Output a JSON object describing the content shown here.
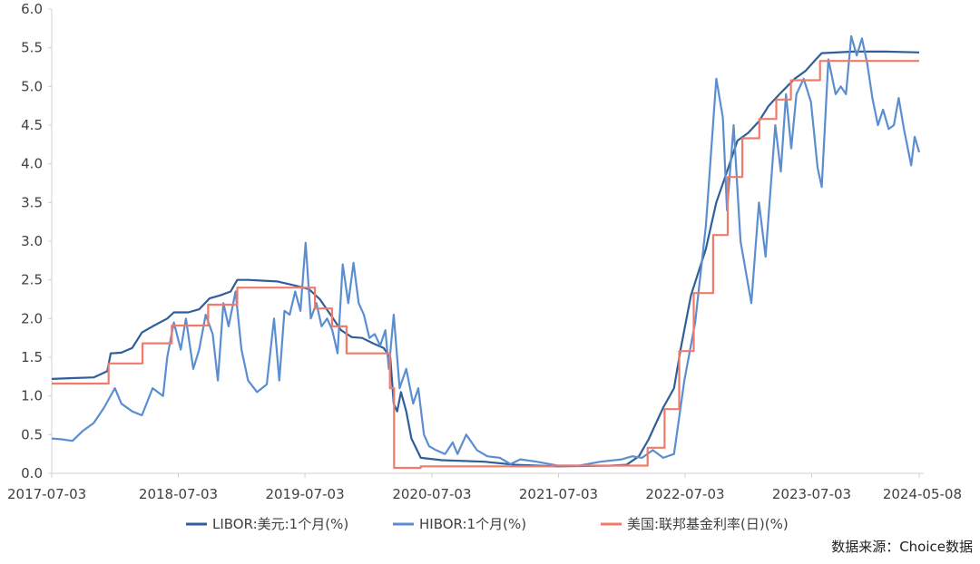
{
  "chart_data": {
    "type": "line",
    "title": "",
    "xlabel": "",
    "ylabel": "",
    "ylim": [
      0,
      6
    ],
    "xlim": [
      "2017-07-03",
      "2024-05-08"
    ],
    "y_ticks": [
      "0.0",
      "0.5",
      "1.0",
      "1.5",
      "2.0",
      "2.5",
      "3.0",
      "3.5",
      "4.0",
      "4.5",
      "5.0",
      "5.5",
      "6.0"
    ],
    "x_ticks": [
      {
        "date": "2017-07-03",
        "label": "2017-07-03"
      },
      {
        "date": "2018-07-03",
        "label": "2018-07-03"
      },
      {
        "date": "2019-07-03",
        "label": "2019-07-03"
      },
      {
        "date": "2020-07-03",
        "label": "2020-07-03"
      },
      {
        "date": "2021-07-03",
        "label": "2021-07-03"
      },
      {
        "date": "2022-07-03",
        "label": "2022-07-03"
      },
      {
        "date": "2023-07-03",
        "label": "2023-07-03"
      },
      {
        "date": "2024-05-08",
        "label": "2024-05-08"
      }
    ],
    "grid": false,
    "legend_position": "bottom",
    "series": [
      {
        "name": "LIBOR:美元:1个月(%)",
        "color": "#2f5f97",
        "points": [
          [
            "2017-07-03",
            1.22
          ],
          [
            "2017-09-01",
            1.23
          ],
          [
            "2017-11-01",
            1.24
          ],
          [
            "2017-12-10",
            1.32
          ],
          [
            "2017-12-20",
            1.55
          ],
          [
            "2018-01-20",
            1.56
          ],
          [
            "2018-02-20",
            1.62
          ],
          [
            "2018-03-20",
            1.82
          ],
          [
            "2018-04-20",
            1.9
          ],
          [
            "2018-06-01",
            2.0
          ],
          [
            "2018-06-20",
            2.08
          ],
          [
            "2018-08-01",
            2.08
          ],
          [
            "2018-09-01",
            2.12
          ],
          [
            "2018-10-01",
            2.26
          ],
          [
            "2018-11-01",
            2.3
          ],
          [
            "2018-12-01",
            2.35
          ],
          [
            "2018-12-20",
            2.5
          ],
          [
            "2019-01-20",
            2.5
          ],
          [
            "2019-03-01",
            2.49
          ],
          [
            "2019-04-15",
            2.48
          ],
          [
            "2019-06-01",
            2.43
          ],
          [
            "2019-07-15",
            2.38
          ],
          [
            "2019-08-15",
            2.25
          ],
          [
            "2019-09-15",
            2.05
          ],
          [
            "2019-10-15",
            1.85
          ],
          [
            "2019-11-15",
            1.76
          ],
          [
            "2019-12-15",
            1.75
          ],
          [
            "2020-01-15",
            1.68
          ],
          [
            "2020-02-15",
            1.62
          ],
          [
            "2020-03-05",
            1.5
          ],
          [
            "2020-03-15",
            0.9
          ],
          [
            "2020-03-25",
            0.8
          ],
          [
            "2020-04-05",
            1.05
          ],
          [
            "2020-04-20",
            0.8
          ],
          [
            "2020-05-05",
            0.45
          ],
          [
            "2020-06-01",
            0.2
          ],
          [
            "2020-08-01",
            0.17
          ],
          [
            "2020-12-01",
            0.15
          ],
          [
            "2021-03-01",
            0.11
          ],
          [
            "2021-07-01",
            0.09
          ],
          [
            "2021-12-01",
            0.1
          ],
          [
            "2022-01-15",
            0.11
          ],
          [
            "2022-02-20",
            0.22
          ],
          [
            "2022-03-20",
            0.44
          ],
          [
            "2022-05-01",
            0.85
          ],
          [
            "2022-06-01",
            1.1
          ],
          [
            "2022-06-20",
            1.6
          ],
          [
            "2022-07-20",
            2.3
          ],
          [
            "2022-09-01",
            2.9
          ],
          [
            "2022-10-01",
            3.5
          ],
          [
            "2022-11-01",
            3.9
          ],
          [
            "2022-12-01",
            4.3
          ],
          [
            "2023-01-01",
            4.4
          ],
          [
            "2023-02-01",
            4.55
          ],
          [
            "2023-03-01",
            4.75
          ],
          [
            "2023-04-01",
            4.9
          ],
          [
            "2023-05-15",
            5.1
          ],
          [
            "2023-06-15",
            5.2
          ],
          [
            "2023-07-15",
            5.35
          ],
          [
            "2023-08-01",
            5.43
          ],
          [
            "2023-11-01",
            5.45
          ],
          [
            "2024-02-01",
            5.45
          ],
          [
            "2024-05-08",
            5.44
          ]
        ]
      },
      {
        "name": "HIBOR:1个月(%)",
        "color": "#5b8ed0",
        "points": [
          [
            "2017-07-03",
            0.45
          ],
          [
            "2017-08-01",
            0.44
          ],
          [
            "2017-09-01",
            0.42
          ],
          [
            "2017-10-01",
            0.55
          ],
          [
            "2017-11-01",
            0.65
          ],
          [
            "2017-12-01",
            0.85
          ],
          [
            "2018-01-01",
            1.1
          ],
          [
            "2018-01-20",
            0.9
          ],
          [
            "2018-02-20",
            0.8
          ],
          [
            "2018-03-20",
            0.75
          ],
          [
            "2018-04-20",
            1.1
          ],
          [
            "2018-05-20",
            1.0
          ],
          [
            "2018-06-01",
            1.5
          ],
          [
            "2018-06-20",
            1.95
          ],
          [
            "2018-07-10",
            1.6
          ],
          [
            "2018-07-25",
            2.0
          ],
          [
            "2018-08-15",
            1.35
          ],
          [
            "2018-09-01",
            1.6
          ],
          [
            "2018-09-20",
            2.05
          ],
          [
            "2018-10-10",
            1.8
          ],
          [
            "2018-10-25",
            1.2
          ],
          [
            "2018-11-10",
            2.2
          ],
          [
            "2018-11-25",
            1.9
          ],
          [
            "2018-12-15",
            2.35
          ],
          [
            "2019-01-01",
            1.6
          ],
          [
            "2019-01-20",
            1.2
          ],
          [
            "2019-02-15",
            1.05
          ],
          [
            "2019-03-15",
            1.15
          ],
          [
            "2019-04-05",
            2.0
          ],
          [
            "2019-04-20",
            1.2
          ],
          [
            "2019-05-05",
            2.1
          ],
          [
            "2019-05-20",
            2.05
          ],
          [
            "2019-06-05",
            2.35
          ],
          [
            "2019-06-20",
            2.1
          ],
          [
            "2019-07-05",
            2.98
          ],
          [
            "2019-07-20",
            2.0
          ],
          [
            "2019-08-05",
            2.2
          ],
          [
            "2019-08-20",
            1.9
          ],
          [
            "2019-09-05",
            2.0
          ],
          [
            "2019-09-20",
            1.85
          ],
          [
            "2019-10-05",
            1.55
          ],
          [
            "2019-10-20",
            2.7
          ],
          [
            "2019-11-05",
            2.2
          ],
          [
            "2019-11-20",
            2.72
          ],
          [
            "2019-12-05",
            2.2
          ],
          [
            "2019-12-20",
            2.05
          ],
          [
            "2020-01-05",
            1.75
          ],
          [
            "2020-01-20",
            1.8
          ],
          [
            "2020-02-05",
            1.65
          ],
          [
            "2020-02-20",
            1.85
          ],
          [
            "2020-03-01",
            1.35
          ],
          [
            "2020-03-15",
            2.05
          ],
          [
            "2020-04-01",
            1.1
          ],
          [
            "2020-04-20",
            1.35
          ],
          [
            "2020-05-10",
            0.9
          ],
          [
            "2020-05-25",
            1.1
          ],
          [
            "2020-06-10",
            0.5
          ],
          [
            "2020-06-25",
            0.35
          ],
          [
            "2020-07-15",
            0.3
          ],
          [
            "2020-08-10",
            0.25
          ],
          [
            "2020-09-01",
            0.4
          ],
          [
            "2020-09-15",
            0.25
          ],
          [
            "2020-10-10",
            0.5
          ],
          [
            "2020-11-10",
            0.3
          ],
          [
            "2020-12-10",
            0.22
          ],
          [
            "2021-01-15",
            0.2
          ],
          [
            "2021-02-15",
            0.12
          ],
          [
            "2021-03-15",
            0.18
          ],
          [
            "2021-05-01",
            0.15
          ],
          [
            "2021-07-01",
            0.1
          ],
          [
            "2021-09-01",
            0.1
          ],
          [
            "2021-11-01",
            0.15
          ],
          [
            "2022-01-01",
            0.18
          ],
          [
            "2022-02-01",
            0.22
          ],
          [
            "2022-03-01",
            0.2
          ],
          [
            "2022-04-01",
            0.3
          ],
          [
            "2022-05-01",
            0.2
          ],
          [
            "2022-06-01",
            0.25
          ],
          [
            "2022-07-01",
            1.2
          ],
          [
            "2022-08-01",
            1.95
          ],
          [
            "2022-09-01",
            3.2
          ],
          [
            "2022-10-01",
            5.1
          ],
          [
            "2022-10-20",
            4.6
          ],
          [
            "2022-11-01",
            3.4
          ],
          [
            "2022-11-20",
            4.5
          ],
          [
            "2022-12-10",
            3.0
          ],
          [
            "2023-01-10",
            2.2
          ],
          [
            "2023-02-01",
            3.5
          ],
          [
            "2023-02-20",
            2.8
          ],
          [
            "2023-03-20",
            4.5
          ],
          [
            "2023-04-05",
            3.9
          ],
          [
            "2023-04-20",
            4.9
          ],
          [
            "2023-05-05",
            4.2
          ],
          [
            "2023-05-20",
            4.9
          ],
          [
            "2023-06-10",
            5.1
          ],
          [
            "2023-07-01",
            4.8
          ],
          [
            "2023-07-20",
            3.95
          ],
          [
            "2023-08-01",
            3.7
          ],
          [
            "2023-08-20",
            5.35
          ],
          [
            "2023-09-10",
            4.9
          ],
          [
            "2023-09-25",
            5.0
          ],
          [
            "2023-10-10",
            4.9
          ],
          [
            "2023-10-25",
            5.65
          ],
          [
            "2023-11-10",
            5.4
          ],
          [
            "2023-11-25",
            5.62
          ],
          [
            "2023-12-10",
            5.3
          ],
          [
            "2023-12-25",
            4.85
          ],
          [
            "2024-01-10",
            4.5
          ],
          [
            "2024-01-25",
            4.7
          ],
          [
            "2024-02-10",
            4.45
          ],
          [
            "2024-02-25",
            4.5
          ],
          [
            "2024-03-10",
            4.85
          ],
          [
            "2024-03-25",
            4.45
          ],
          [
            "2024-04-05",
            4.2
          ],
          [
            "2024-04-15",
            3.98
          ],
          [
            "2024-04-25",
            4.35
          ],
          [
            "2024-05-08",
            4.15
          ]
        ]
      },
      {
        "name": "美国:联邦基金利率(日)(%)",
        "color": "#f07b6b",
        "step": true,
        "points": [
          [
            "2017-07-03",
            1.16
          ],
          [
            "2017-12-14",
            1.42
          ],
          [
            "2018-03-22",
            1.68
          ],
          [
            "2018-06-14",
            1.91
          ],
          [
            "2018-09-27",
            2.18
          ],
          [
            "2018-12-20",
            2.4
          ],
          [
            "2019-08-01",
            2.13
          ],
          [
            "2019-09-19",
            1.9
          ],
          [
            "2019-10-31",
            1.55
          ],
          [
            "2020-03-04",
            1.1
          ],
          [
            "2020-03-16",
            0.07
          ],
          [
            "2020-06-01",
            0.09
          ],
          [
            "2021-06-17",
            0.1
          ],
          [
            "2022-03-17",
            0.33
          ],
          [
            "2022-05-05",
            0.83
          ],
          [
            "2022-06-16",
            1.58
          ],
          [
            "2022-07-28",
            2.33
          ],
          [
            "2022-09-22",
            3.08
          ],
          [
            "2022-11-03",
            3.83
          ],
          [
            "2022-12-15",
            4.33
          ],
          [
            "2023-02-02",
            4.58
          ],
          [
            "2023-03-23",
            4.83
          ],
          [
            "2023-05-04",
            5.08
          ],
          [
            "2023-07-27",
            5.33
          ],
          [
            "2024-05-08",
            5.33
          ]
        ]
      }
    ],
    "source_note": "数据来源：Choice数据"
  }
}
